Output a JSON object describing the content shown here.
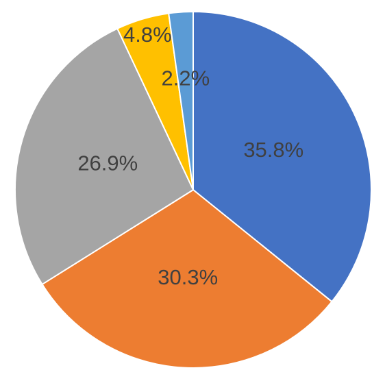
{
  "chart_data": {
    "type": "pie",
    "values": [
      35.8,
      30.3,
      26.9,
      4.8,
      2.2
    ],
    "value_labels": [
      "35.8%",
      "30.3%",
      "26.9%",
      "4.8%",
      "2.2%"
    ],
    "colors": [
      "#4472c4",
      "#ed7d31",
      "#a5a5a5",
      "#ffc000",
      "#5b9bd5"
    ]
  }
}
